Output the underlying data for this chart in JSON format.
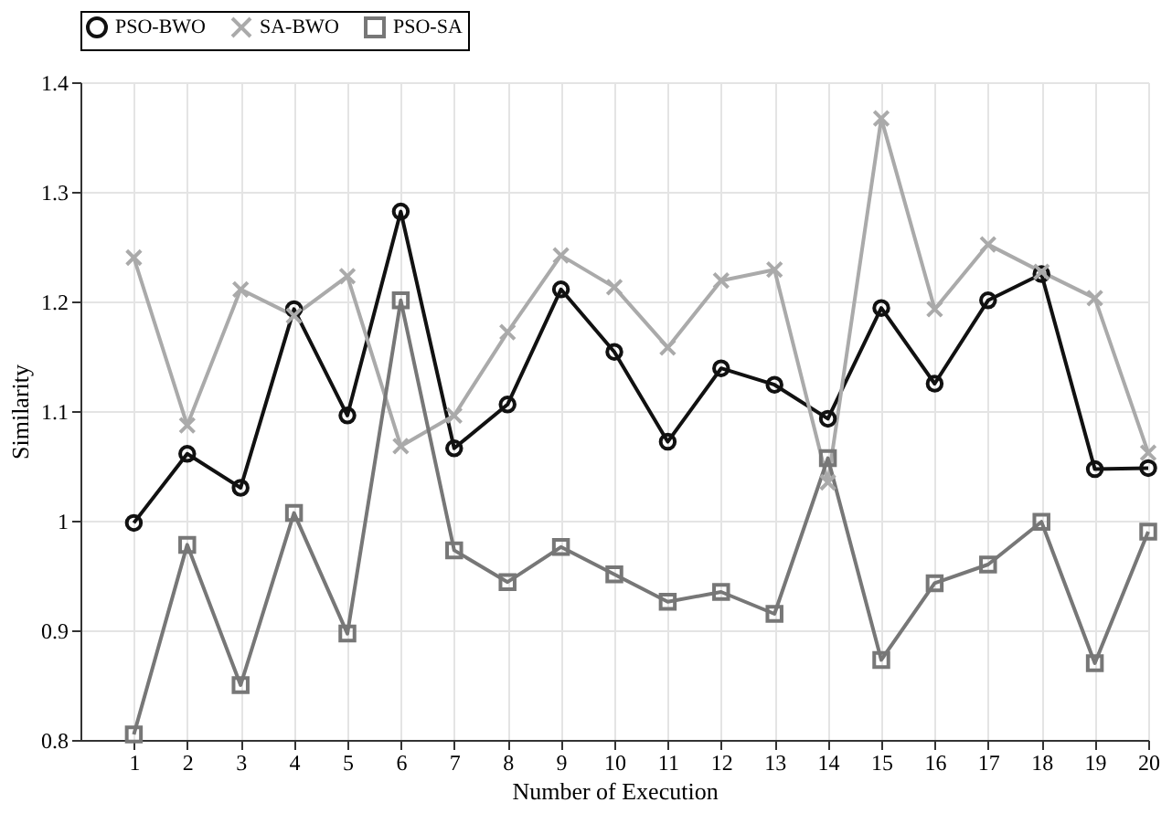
{
  "chart_data": {
    "type": "line",
    "xlabel": "Number of Execution",
    "ylabel": "Similarity",
    "x": [
      1,
      2,
      3,
      4,
      5,
      6,
      7,
      8,
      9,
      10,
      11,
      12,
      13,
      14,
      15,
      16,
      17,
      18,
      19,
      20
    ],
    "series": [
      {
        "name": "PSO-BWO",
        "color": "#111111",
        "marker": "circle",
        "values": [
          0.998,
          1.061,
          1.03,
          1.193,
          1.096,
          1.282,
          1.066,
          1.106,
          1.211,
          1.154,
          1.072,
          1.139,
          1.124,
          1.093,
          1.194,
          1.125,
          1.201,
          1.225,
          1.047,
          1.048
        ]
      },
      {
        "name": "SA-BWO",
        "color": "#aaaaaa",
        "marker": "cross",
        "values": [
          1.24,
          1.087,
          1.211,
          1.187,
          1.223,
          1.068,
          1.096,
          1.172,
          1.242,
          1.213,
          1.158,
          1.219,
          1.229,
          1.035,
          1.367,
          1.193,
          1.252,
          1.227,
          1.203,
          1.062
        ]
      },
      {
        "name": "PSO-SA",
        "color": "#777777",
        "marker": "square",
        "values": [
          0.805,
          0.978,
          0.85,
          1.007,
          0.897,
          1.201,
          0.973,
          0.944,
          0.976,
          0.951,
          0.926,
          0.935,
          0.915,
          1.057,
          0.873,
          0.943,
          0.96,
          0.999,
          0.87,
          0.99
        ]
      }
    ],
    "xlim": [
      0,
      20
    ],
    "xticks": [
      1,
      2,
      3,
      4,
      5,
      6,
      7,
      8,
      9,
      10,
      11,
      12,
      13,
      14,
      15,
      16,
      17,
      18,
      19,
      20
    ],
    "ylim": [
      0.8,
      1.4
    ],
    "yticks": [
      0.8,
      0.9,
      1,
      1.1,
      1.2,
      1.3,
      1.4
    ],
    "grid": true,
    "legend": "top",
    "line_style": "solid"
  }
}
